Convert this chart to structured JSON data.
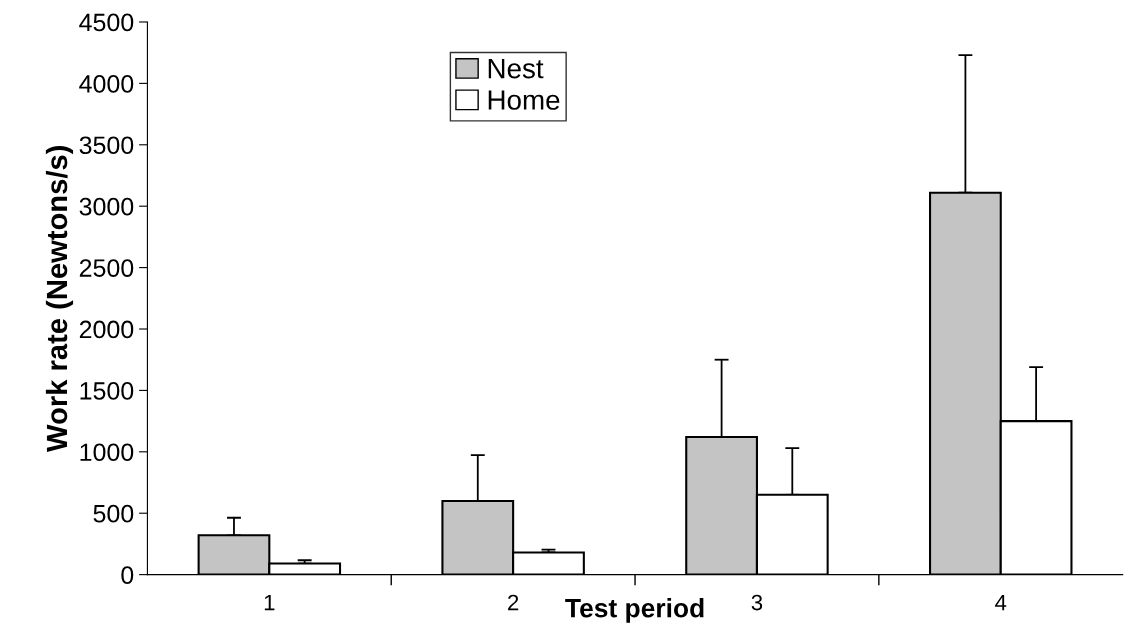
{
  "chart_data": {
    "type": "bar",
    "xlabel": "Test period",
    "ylabel": "Work rate (Newtons/s)",
    "categories": [
      "1",
      "2",
      "3",
      "4"
    ],
    "series": [
      {
        "name": "Nest",
        "color": "#c4c4c4",
        "values": [
          320,
          600,
          1120,
          3110
        ],
        "errors": [
          [
            320,
            463
          ],
          [
            600,
            973
          ],
          [
            1120,
            1750
          ],
          [
            3110,
            4230
          ]
        ]
      },
      {
        "name": "Home",
        "color": "#ffffff",
        "values": [
          90,
          180,
          650,
          1250
        ],
        "errors": [
          [
            90,
            117
          ],
          [
            180,
            203
          ],
          [
            650,
            1030
          ],
          [
            1250,
            1690
          ]
        ]
      }
    ],
    "ylim": [
      0,
      4500
    ],
    "yticks": [
      0,
      500,
      1000,
      1500,
      2000,
      2500,
      3000,
      3500,
      4000,
      4500
    ],
    "grid": false,
    "legend": "top"
  }
}
